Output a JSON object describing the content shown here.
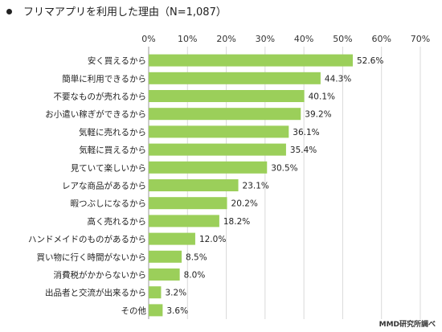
{
  "chart_data": {
    "type": "bar",
    "orientation": "horizontal",
    "title": "フリマアプリを利用した理由（N=1,087）",
    "categories": [
      "安く買えるから",
      "簡単に利用できるから",
      "不要なものが売れるから",
      "お小遣い稼ぎができるから",
      "気軽に売れるから",
      "気軽に買えるから",
      "見ていて楽しいから",
      "レアな商品があるから",
      "暇つぶしになるから",
      "高く売れるから",
      "ハンドメイドのものがあるから",
      "買い物に行く時間がないから",
      "消費税がかからないから",
      "出品者と交流が出来るから",
      "その他"
    ],
    "values": [
      52.6,
      44.3,
      40.1,
      39.2,
      36.1,
      35.4,
      30.5,
      23.1,
      20.2,
      18.2,
      12.0,
      8.5,
      8.0,
      3.2,
      3.6
    ],
    "data_labels": [
      "52.6%",
      "44.3%",
      "40.1%",
      "39.2%",
      "36.1%",
      "35.4%",
      "30.5%",
      "23.1%",
      "20.2%",
      "18.2%",
      "12.0%",
      "8.5%",
      "8.0%",
      "3.2%",
      "3.6%"
    ],
    "xlim": [
      0,
      70
    ],
    "x_ticks": [
      "0%",
      "10%",
      "20%",
      "30%",
      "40%",
      "50%",
      "60%",
      "70%"
    ],
    "tick_position": "top",
    "grid": true,
    "bar_color": "#9bcf5a",
    "source": "MMD研究所調べ"
  }
}
